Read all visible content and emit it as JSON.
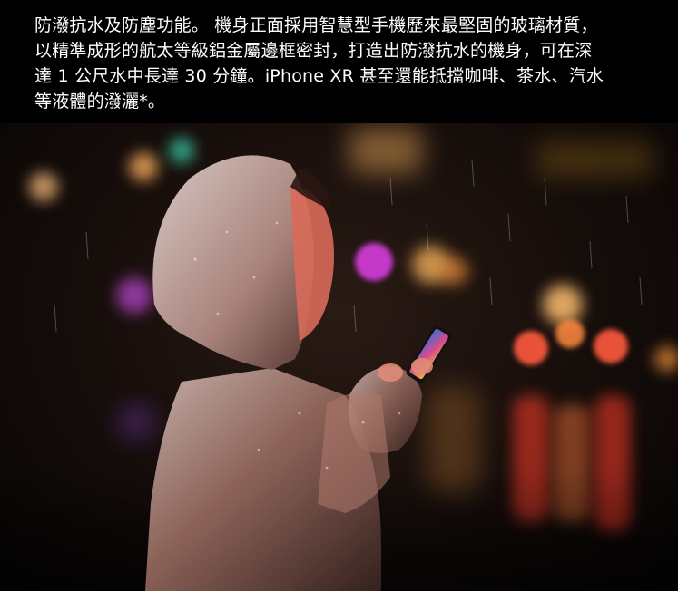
{
  "caption": {
    "lines": [
      "防潑抗水及防塵功能。 機身正面採用智慧型手機歷來最堅固的玻璃材質，",
      "以精準成形的航太等級鋁金屬邊框密封，打造出防潑抗水的機身，可在深",
      "達 1 公尺水中長達 30 分鐘。iPhone XR 甚至還能抵擋咖啡、茶水、汽水",
      "等液體的潑灑*。"
    ]
  },
  "photo": {
    "subject": "person-in-raincoat-holding-phone-in-rain",
    "colors": {
      "background": "#000000",
      "caption_text": "#ffffff",
      "raincoat": "#c9a8a0",
      "bokeh_red": "#ff5a3c",
      "bokeh_orange": "#ffb45a",
      "bokeh_purple": "#c04ad8",
      "bokeh_teal": "#3fd6b0"
    }
  }
}
